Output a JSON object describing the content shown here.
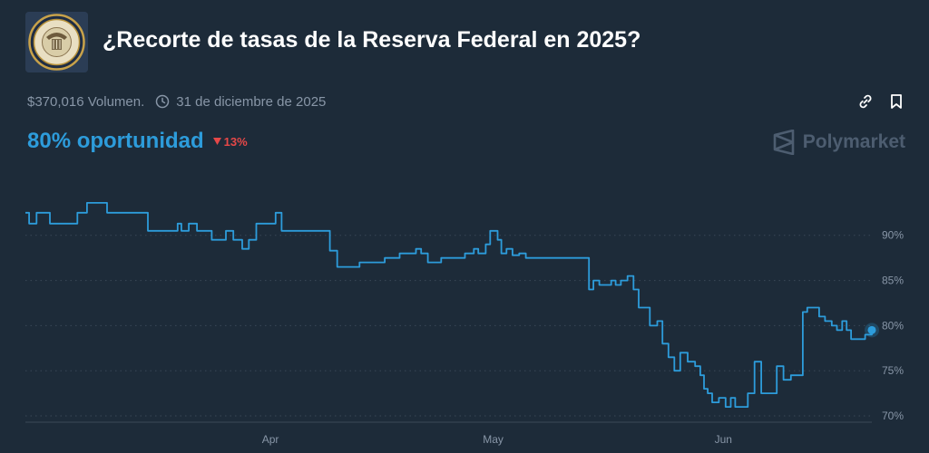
{
  "market": {
    "title": "¿Recorte de tasas de la Reserva Federal en 2025?",
    "volume": "$370,016 Volumen.",
    "end_date": "31 de diciembre de 2025",
    "chance": "80% oportunidad",
    "change": "13%",
    "brand": "Polymarket",
    "icons": {
      "logo": "federal-reserve-seal",
      "clock": "clock-icon",
      "link": "link-icon",
      "bookmark": "bookmark-icon",
      "change": "down-triangle-icon",
      "brand": "polymarket-logo"
    }
  },
  "colors": {
    "background": "#1d2b39",
    "line": "#2d9cdb",
    "negative": "#e64848",
    "muted": "#8896a7"
  },
  "chart_data": {
    "type": "line",
    "title": "",
    "xlabel": "",
    "ylabel": "",
    "ylim": [
      69.3,
      97
    ],
    "x_ticks": [
      {
        "label": "Apr",
        "x": 33
      },
      {
        "label": "May",
        "x": 63
      },
      {
        "label": "Jun",
        "x": 94
      }
    ],
    "y_ticks": [
      {
        "label": "90%",
        "y": 90
      },
      {
        "label": "85%",
        "y": 85
      },
      {
        "label": "80%",
        "y": 80
      },
      {
        "label": "75%",
        "y": 75
      },
      {
        "label": "70%",
        "y": 70
      }
    ],
    "grid": "horizontal-dotted",
    "series": [
      {
        "name": "",
        "x": [
          0,
          0.5,
          1,
          1.5,
          2.5,
          3.3,
          4.5,
          5.5,
          6.3,
          7,
          7.8,
          8.3,
          9.6,
          11,
          12.5,
          13,
          14,
          15.3,
          16,
          16.5,
          17.3,
          18.6,
          19.5,
          20.5,
          21,
          22,
          23.1,
          24,
          24.5,
          25.1,
          26.2,
          27,
          28,
          29.2,
          30.1,
          31.1,
          32.3,
          33.7,
          34.5,
          35.5,
          36.3,
          37,
          38,
          39,
          40.1,
          41,
          42,
          43.4,
          45,
          46.6,
          47.6,
          48.4,
          49.4,
          50.4,
          51.6,
          52.6,
          53.3,
          54.2,
          55.2,
          56,
          57.2,
          58.3,
          59.2,
          60.4,
          61,
          62,
          62.6,
          63.1,
          63.6,
          64.1,
          64.8,
          65.6,
          66.5,
          67.4,
          68.6,
          69.6,
          70.6,
          71.2,
          72.1,
          73.4,
          74.5,
          75.1,
          75.9,
          76.5,
          77.3,
          78.1,
          78.9,
          79.5,
          80.2,
          81.1,
          81.9,
          82.6,
          83.2,
          84.1,
          85.1,
          85.8,
          86.6,
          87.4,
          88.2,
          89.2,
          90.2,
          90.9,
          91.4,
          91.9,
          92.5,
          93.4,
          94.3,
          95,
          95.6,
          96.5,
          97.3,
          98.2,
          99.1,
          100,
          101.2,
          102.1,
          103.1,
          104,
          104.7,
          105.3,
          106.1,
          106.9,
          107.7,
          108.6,
          109.3,
          110,
          110.6,
          111.2,
          111.8,
          112.4,
          113.1,
          114
        ],
        "values": [
          92.5,
          91.3,
          91.3,
          92.5,
          92.5,
          91.3,
          91.3,
          91.3,
          91.3,
          92.5,
          92.5,
          93.6,
          93.6,
          92.5,
          92.5,
          92.5,
          92.5,
          92.5,
          92.5,
          90.5,
          90.5,
          90.5,
          90.5,
          91.3,
          90.5,
          91.3,
          90.5,
          90.5,
          90.5,
          89.5,
          89.5,
          90.5,
          89.5,
          88.5,
          89.5,
          91.3,
          91.3,
          92.5,
          90.5,
          90.5,
          90.5,
          90.5,
          90.5,
          90.5,
          90.5,
          88.3,
          86.5,
          86.5,
          87.0,
          87.0,
          87.0,
          87.5,
          87.5,
          88.0,
          88.0,
          88.5,
          88.0,
          87.0,
          87.0,
          87.5,
          87.5,
          87.5,
          88.0,
          88.5,
          88.0,
          89.0,
          90.5,
          90.5,
          89.5,
          88.0,
          88.5,
          87.8,
          88.0,
          87.5,
          87.5,
          87.5,
          87.5,
          87.5,
          87.5,
          87.5,
          87.5,
          87.5,
          84.0,
          85.0,
          84.5,
          84.5,
          85.0,
          84.5,
          85.0,
          85.5,
          84.0,
          82.0,
          82.0,
          80.0,
          80.5,
          78.0,
          76.5,
          75.0,
          77.0,
          76.0,
          75.5,
          74.5,
          73.0,
          72.5,
          71.5,
          72.0,
          71.0,
          72.0,
          71.0,
          71.0,
          72.5,
          76.0,
          72.5,
          72.5,
          75.5,
          74.0,
          74.5,
          74.5,
          81.5,
          82.0,
          82.0,
          81.0,
          80.5,
          80.0,
          79.5,
          80.5,
          79.5,
          78.5,
          78.5,
          78.5,
          79.0,
          79.5
        ]
      }
    ],
    "last_value": 79.5
  }
}
